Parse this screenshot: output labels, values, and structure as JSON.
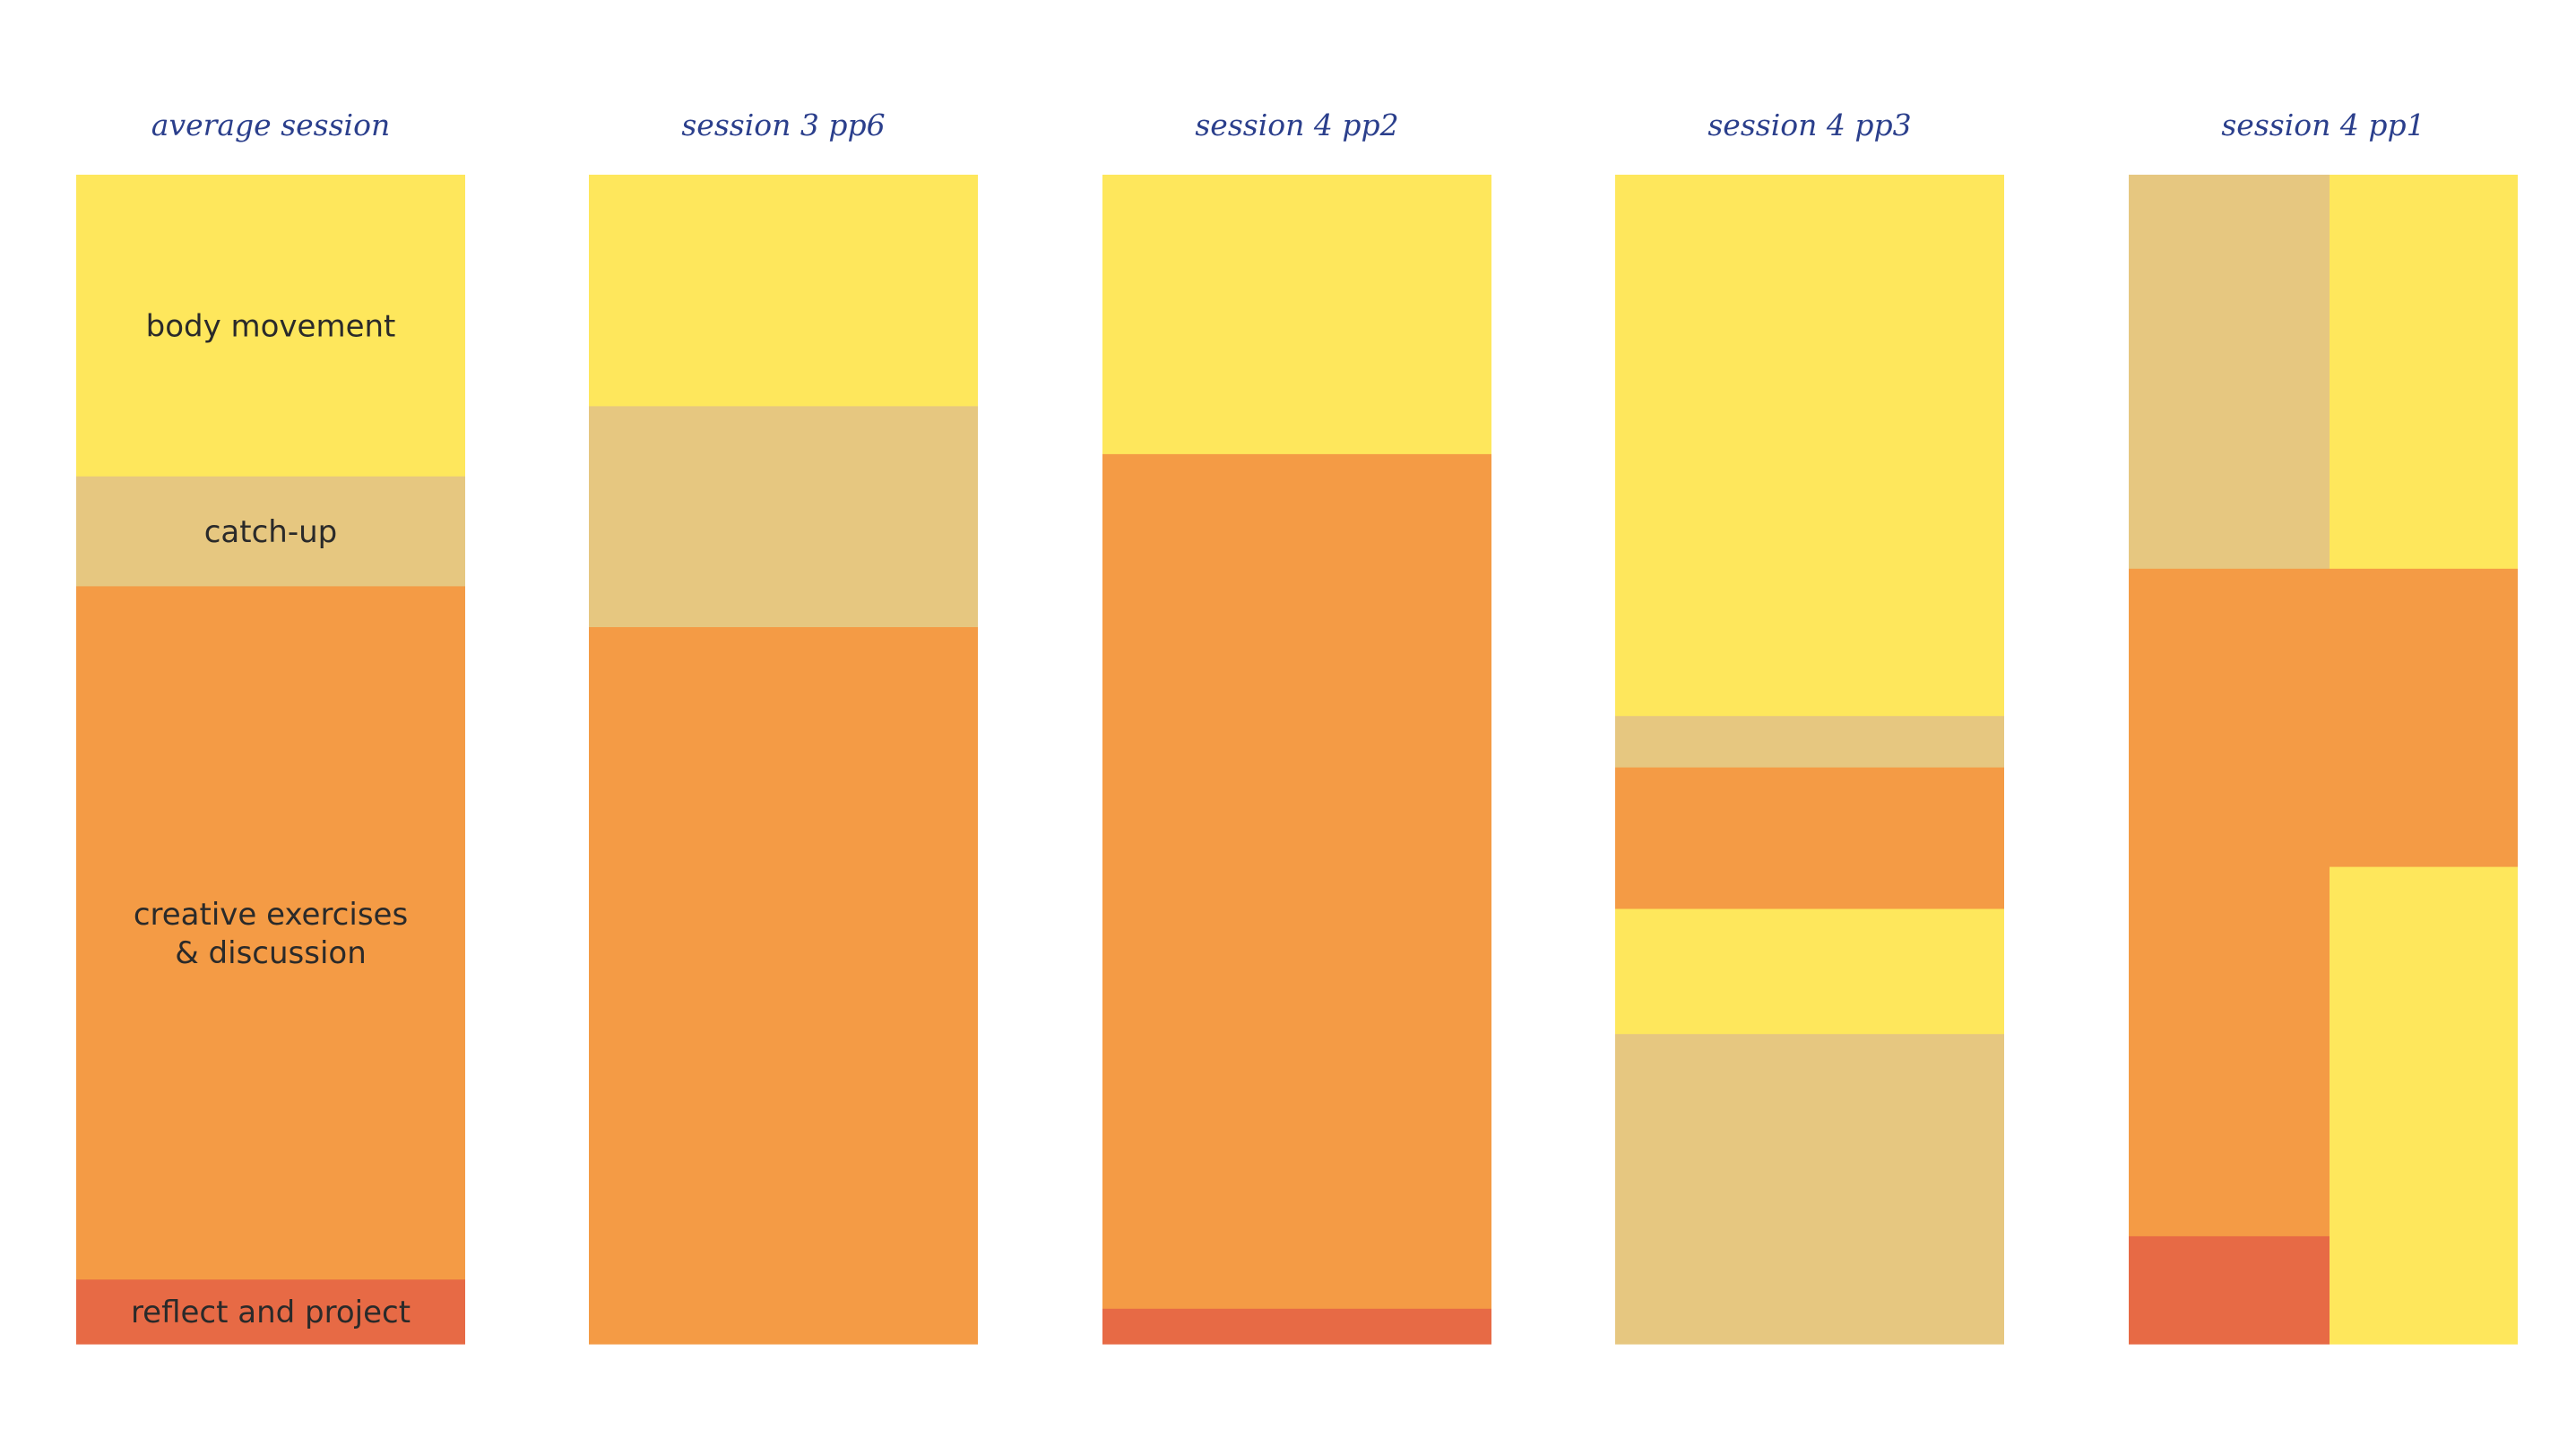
{
  "colors": {
    "body_movement": "#fee75c",
    "catch_up": "#e6c780",
    "creative_exercises": "#f49b45",
    "reflect_and_project": "#e76a45",
    "title": "#2b3f8c"
  },
  "chart_data": {
    "type": "bar",
    "stacked": true,
    "orientation": "vertical",
    "y_unit": "fraction of session (0 = start, 1 = end)",
    "activities": [
      {
        "key": "body_movement",
        "label": "body movement"
      },
      {
        "key": "catch_up",
        "label": "catch-up"
      },
      {
        "key": "creative_exercises",
        "label": "creative exercises\n& discussion"
      },
      {
        "key": "reflect_and_project",
        "label": "reflect and project"
      }
    ],
    "columns": [
      {
        "title": "average session",
        "show_labels": true,
        "segments": [
          {
            "activity": "body_movement",
            "start": 0.0,
            "end": 0.258,
            "label": "body movement"
          },
          {
            "activity": "catch_up",
            "start": 0.258,
            "end": 0.352,
            "label": "catch-up"
          },
          {
            "activity": "creative_exercises",
            "start": 0.352,
            "end": 0.945,
            "label": "creative exercises\n& discussion"
          },
          {
            "activity": "reflect_and_project",
            "start": 0.945,
            "end": 1.0,
            "label": "reflect and project"
          }
        ]
      },
      {
        "title": "session 3 pp6",
        "segments": [
          {
            "activity": "body_movement",
            "start": 0.0,
            "end": 0.198
          },
          {
            "activity": "catch_up",
            "start": 0.198,
            "end": 0.387
          },
          {
            "activity": "creative_exercises",
            "start": 0.387,
            "end": 1.0
          }
        ]
      },
      {
        "title": "session 4 pp2",
        "segments": [
          {
            "activity": "body_movement",
            "start": 0.0,
            "end": 0.239
          },
          {
            "activity": "creative_exercises",
            "start": 0.239,
            "end": 0.97
          },
          {
            "activity": "reflect_and_project",
            "start": 0.97,
            "end": 1.0
          }
        ]
      },
      {
        "title": "session 4 pp3",
        "segments": [
          {
            "activity": "body_movement",
            "start": 0.0,
            "end": 0.463
          },
          {
            "activity": "catch_up",
            "start": 0.463,
            "end": 0.507
          },
          {
            "activity": "creative_exercises",
            "start": 0.507,
            "end": 0.628
          },
          {
            "activity": "body_movement",
            "start": 0.628,
            "end": 0.735
          },
          {
            "activity": "catch_up",
            "start": 0.735,
            "end": 1.0
          }
        ]
      },
      {
        "title": "session 4 pp1",
        "split": 0.515,
        "segments": [
          {
            "activity": "catch_up",
            "start": 0.0,
            "end": 0.337,
            "lane": "left"
          },
          {
            "activity": "body_movement",
            "start": 0.0,
            "end": 0.337,
            "lane": "right"
          },
          {
            "activity": "creative_exercises",
            "start": 0.337,
            "end": 0.908,
            "lane": "left"
          },
          {
            "activity": "creative_exercises",
            "start": 0.337,
            "end": 0.592,
            "lane": "right"
          },
          {
            "activity": "reflect_and_project",
            "start": 0.908,
            "end": 1.0,
            "lane": "left"
          },
          {
            "activity": "body_movement",
            "start": 0.592,
            "end": 1.0,
            "lane": "right"
          }
        ]
      }
    ]
  }
}
